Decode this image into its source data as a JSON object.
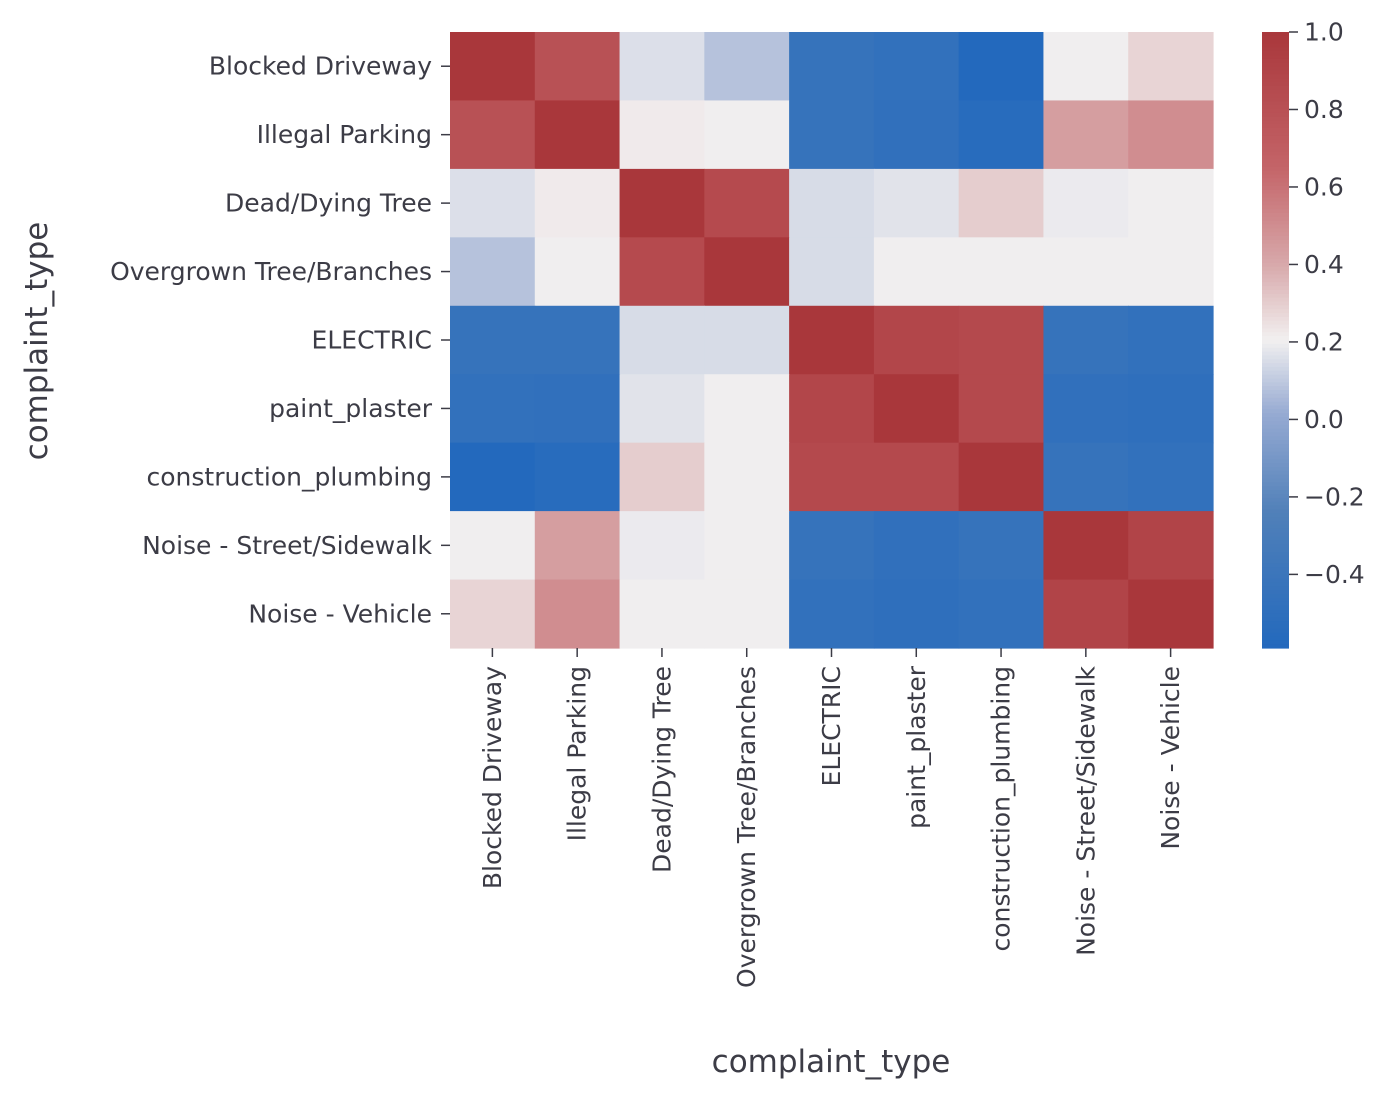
{
  "chart_data": {
    "type": "heatmap",
    "title": "",
    "xlabel": "complaint_type",
    "ylabel": "complaint_type",
    "categories": [
      "Blocked Driveway",
      "Illegal Parking",
      "Dead/Dying Tree",
      "Overgrown Tree/Branches",
      "ELECTRIC",
      "paint_plaster",
      "construction_plumbing",
      "Noise - Street/Sidewalk",
      "Noise - Vehicle"
    ],
    "matrix": [
      [
        1.0,
        0.8,
        0.16,
        0.08,
        -0.44,
        -0.47,
        -0.59,
        0.2,
        0.28
      ],
      [
        0.8,
        1.0,
        0.22,
        0.2,
        -0.44,
        -0.48,
        -0.55,
        0.44,
        0.5
      ],
      [
        0.16,
        0.22,
        1.0,
        0.85,
        0.15,
        0.17,
        0.3,
        0.19,
        0.2
      ],
      [
        0.08,
        0.2,
        0.85,
        1.0,
        0.15,
        0.2,
        0.2,
        0.2,
        0.2
      ],
      [
        -0.44,
        -0.44,
        0.15,
        0.15,
        1.0,
        0.88,
        0.86,
        -0.44,
        -0.47
      ],
      [
        -0.47,
        -0.48,
        0.17,
        0.2,
        0.88,
        1.0,
        0.86,
        -0.48,
        -0.5
      ],
      [
        -0.59,
        -0.55,
        0.3,
        0.2,
        0.86,
        0.86,
        1.0,
        -0.44,
        -0.47
      ],
      [
        0.2,
        0.44,
        0.19,
        0.2,
        -0.44,
        -0.48,
        -0.44,
        1.0,
        0.9
      ],
      [
        0.28,
        0.5,
        0.2,
        0.2,
        -0.47,
        -0.5,
        -0.47,
        0.9,
        1.0
      ]
    ],
    "colorbar": {
      "vmin": -0.59,
      "vmax": 1.0,
      "ticks": [
        1.0,
        0.8,
        0.6,
        0.4,
        0.2,
        0.0,
        -0.2,
        -0.4
      ],
      "tick_labels": [
        "1.0",
        "0.8",
        "0.6",
        "0.4",
        "0.2",
        "0.0",
        "−0.2",
        "−0.4"
      ],
      "colormap": "vlag",
      "low_color": "#2369bd",
      "mid_color": "#f2f0f0",
      "high_color": "#a9373b"
    },
    "grid": false,
    "legend": "colorbar-right"
  }
}
